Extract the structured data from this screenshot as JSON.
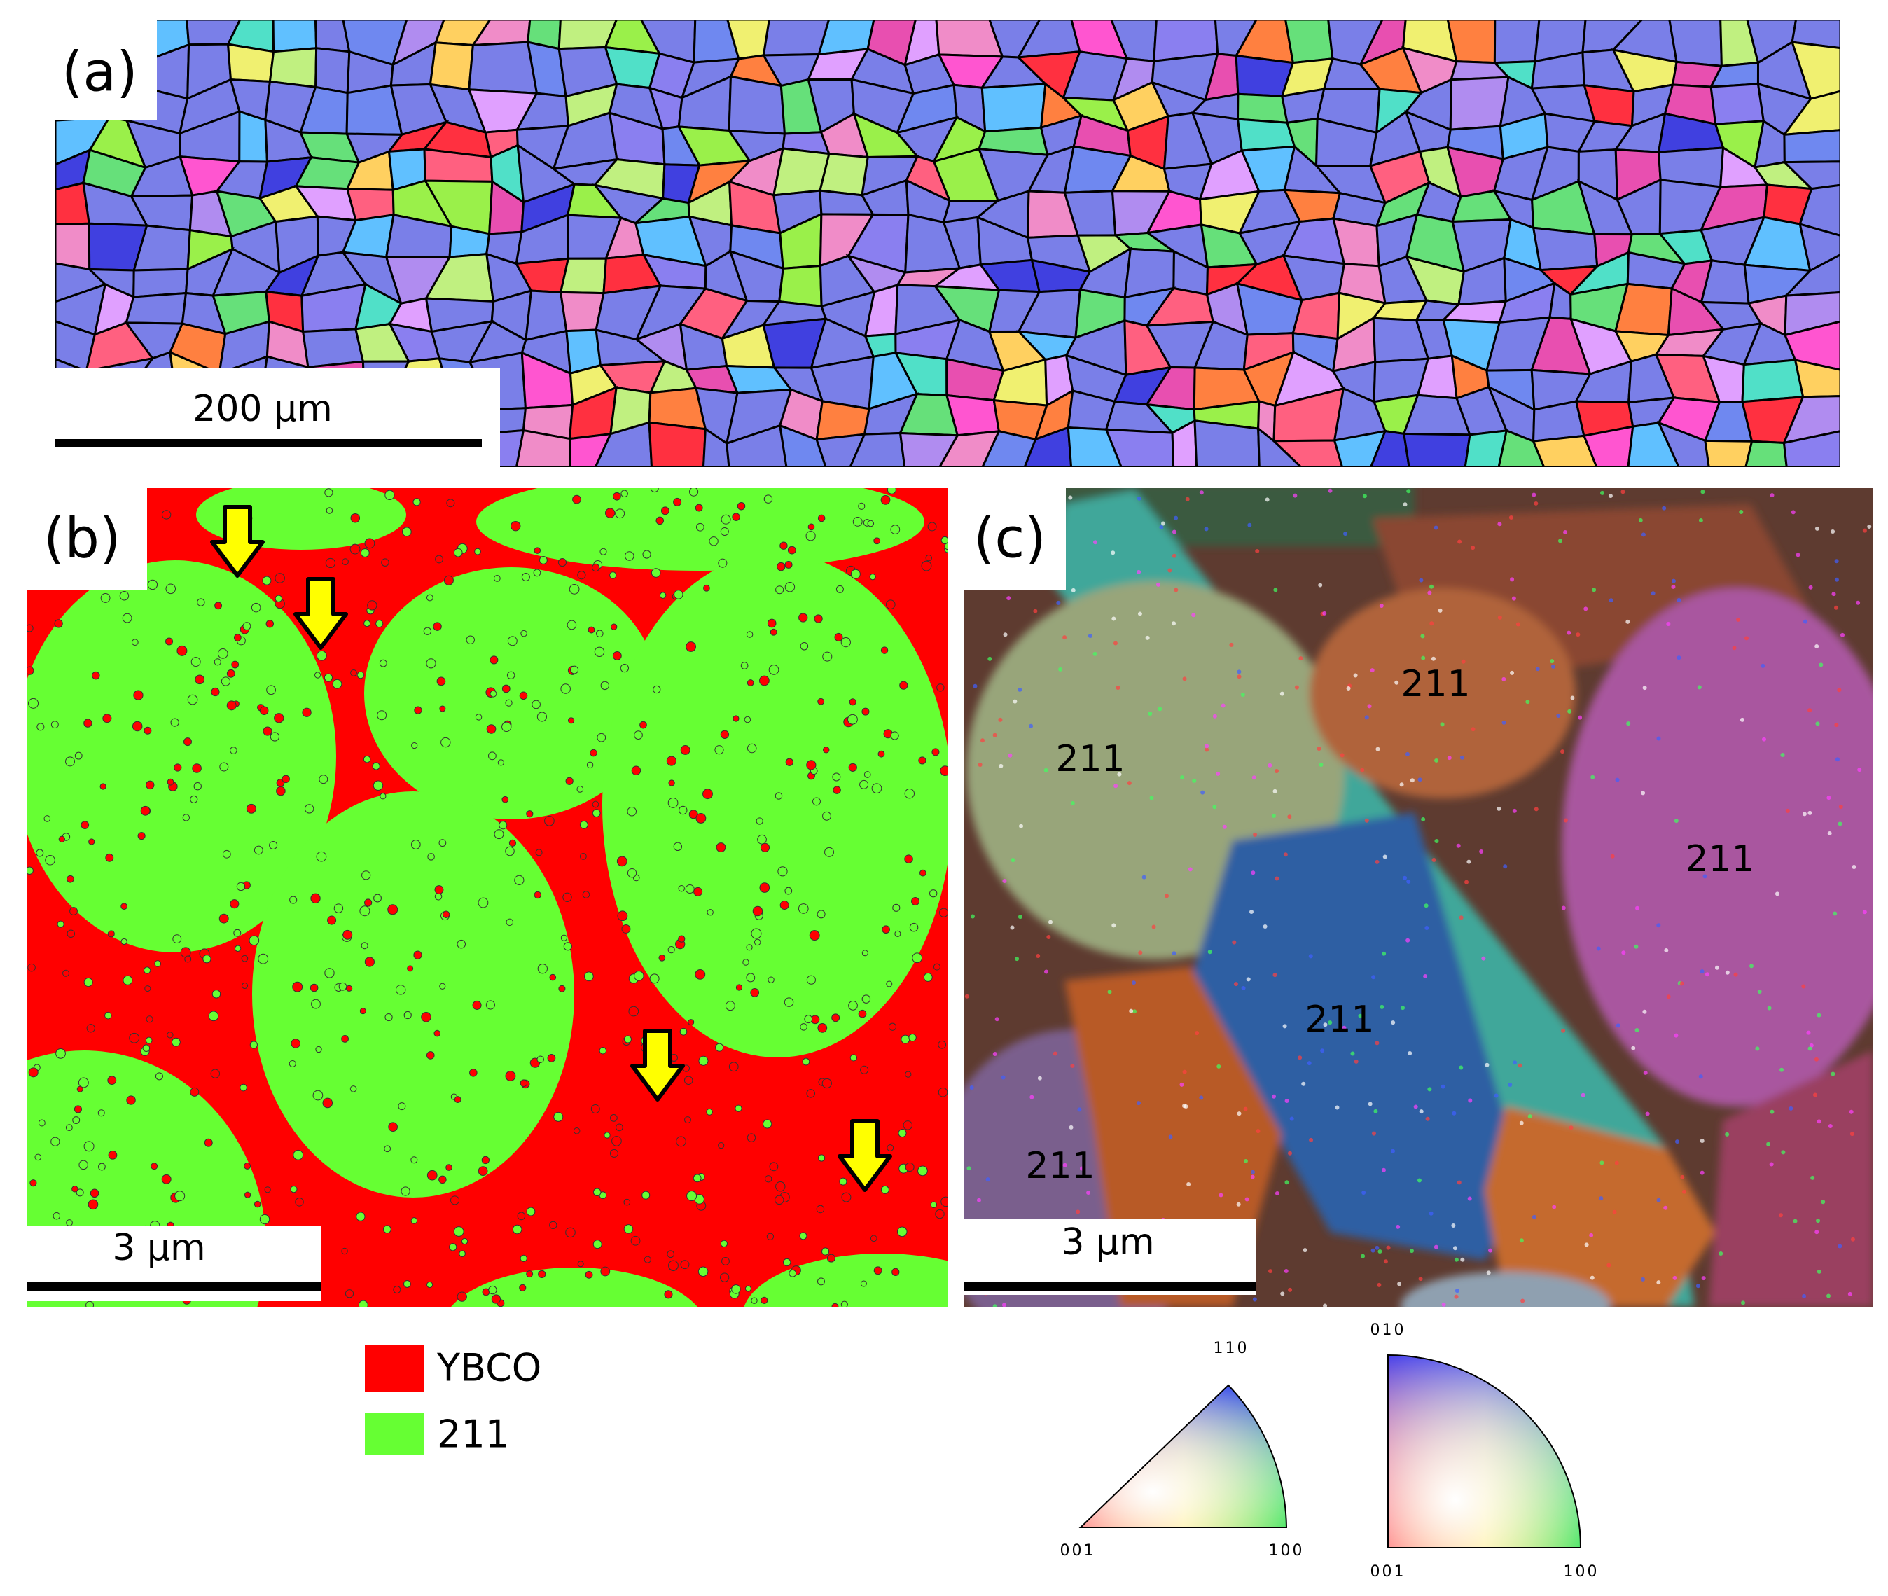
{
  "panels": [
    {
      "label": "(a)",
      "scale_bar": "200 µm"
    },
    {
      "label": "(b)",
      "scale_bar": "3 µm",
      "legend": [
        {
          "label": "YBCO",
          "color": "#ff0000"
        },
        {
          "label": "211",
          "color": "#66ff33"
        }
      ]
    },
    {
      "label": "(c)",
      "scale_bar": "3 µm",
      "grain_labels": [
        "211",
        "211",
        "211",
        "211",
        "211"
      ]
    }
  ],
  "color_keys": [
    {
      "top": "110",
      "left": "001",
      "right": "100"
    },
    {
      "top": "010",
      "left": "001",
      "right": "100"
    }
  ]
}
